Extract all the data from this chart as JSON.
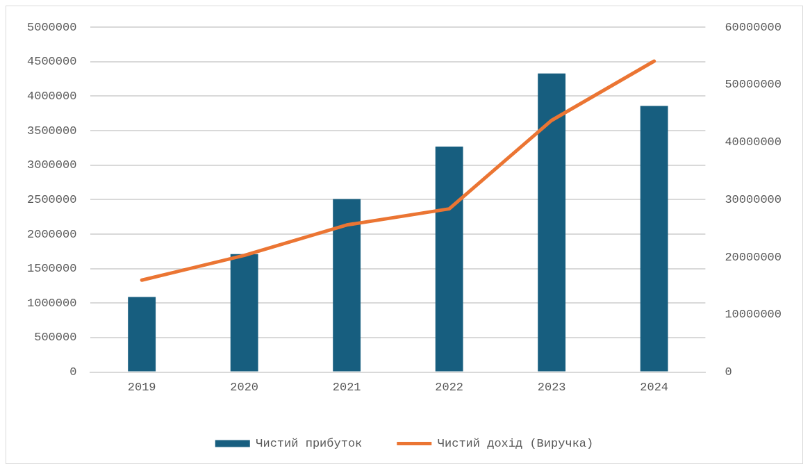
{
  "chart_data": {
    "type": "bar",
    "categories": [
      "2019",
      "2020",
      "2021",
      "2022",
      "2023",
      "2024"
    ],
    "series": [
      {
        "name": "Чистий прибуток",
        "color": "#175e7f",
        "values": [
          1090000,
          1710000,
          2510000,
          3270000,
          4330000,
          3860000
        ]
      },
      {
        "name": "Чистий дохід (Виручка)",
        "type": "line",
        "axis": "y2",
        "color": "#eb7533",
        "values": [
          16000000,
          20300000,
          25600000,
          28400000,
          43800000,
          54100000
        ]
      }
    ],
    "ylim": [
      0,
      5000000
    ],
    "yticks": [
      0,
      500000,
      1000000,
      1500000,
      2000000,
      2500000,
      3000000,
      3500000,
      4000000,
      4500000,
      5000000
    ],
    "y2lim": [
      0,
      60000000
    ],
    "y2ticks": [
      0,
      10000000,
      20000000,
      30000000,
      40000000,
      50000000,
      60000000
    ],
    "grid": "y",
    "legend": "bottom"
  }
}
